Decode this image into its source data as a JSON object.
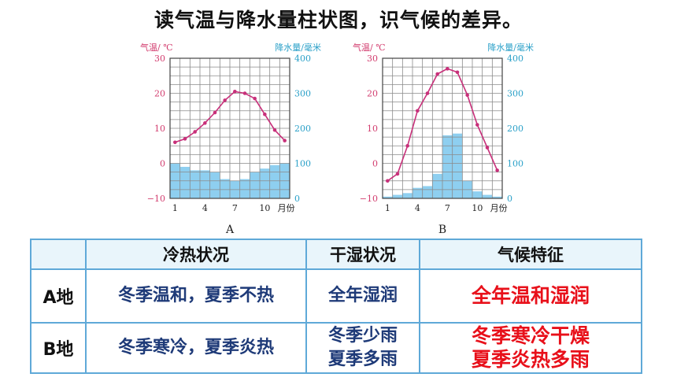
{
  "title": "读气温与降水量柱状图，识气候的差异。",
  "chart_data": [
    {
      "type": "bar+line",
      "caption": "A",
      "left_axis_label": "气温/ ℃",
      "right_axis_label": "降水量/毫米",
      "x_axis_suffix": "月份",
      "x_tick_labels": [
        "1",
        "4",
        "7",
        "10"
      ],
      "left_ticks": [
        "30",
        "20",
        "10",
        "0",
        "−10"
      ],
      "right_ticks": [
        "400",
        "300",
        "200",
        "100",
        "0"
      ],
      "temp_range": [
        -10,
        30
      ],
      "precip_range": [
        0,
        400
      ],
      "months": [
        1,
        2,
        3,
        4,
        5,
        6,
        7,
        8,
        9,
        10,
        11,
        12
      ],
      "temperature": [
        6,
        7,
        9,
        11.5,
        14.5,
        18,
        20.5,
        20,
        18.5,
        14,
        9.5,
        6.5
      ],
      "precipitation": [
        100,
        90,
        80,
        80,
        75,
        55,
        50,
        55,
        75,
        85,
        95,
        100
      ],
      "line_color": "#c8307a",
      "bar_color": "#8ecff0"
    },
    {
      "type": "bar+line",
      "caption": "B",
      "left_axis_label": "气温/ ℃",
      "right_axis_label": "降水量/毫米",
      "x_axis_suffix": "月份",
      "x_tick_labels": [
        "1",
        "4",
        "7",
        "10"
      ],
      "left_ticks": [
        "30",
        "20",
        "10",
        "0",
        "−10"
      ],
      "right_ticks": [
        "400",
        "300",
        "200",
        "100",
        "0"
      ],
      "temp_range": [
        -10,
        30
      ],
      "precip_range": [
        0,
        400
      ],
      "months": [
        1,
        2,
        3,
        4,
        5,
        6,
        7,
        8,
        9,
        10,
        11,
        12
      ],
      "temperature": [
        -5,
        -3,
        5,
        15,
        20,
        25.5,
        27,
        26,
        19.5,
        11,
        4.5,
        -2
      ],
      "precipitation": [
        5,
        10,
        15,
        30,
        35,
        70,
        180,
        185,
        50,
        20,
        10,
        5
      ],
      "line_color": "#c8307a",
      "bar_color": "#8ecff0"
    }
  ],
  "table": {
    "headers": [
      "",
      "冷热状况",
      "干湿状况",
      "气候特征"
    ],
    "rows": [
      {
        "label": "A地",
        "thermal": [
          "冬季温和，夏季不热"
        ],
        "moisture": [
          "全年湿润"
        ],
        "feature": [
          "全年温和湿润"
        ]
      },
      {
        "label": "B地",
        "thermal": [
          "冬季寒冷，夏季炎热"
        ],
        "moisture": [
          "冬季少雨",
          "夏季多雨"
        ],
        "feature": [
          "冬季寒冷干燥",
          "夏季炎热多雨"
        ]
      }
    ],
    "border_color": "#5fa9d8",
    "header_bg": "#e9f5fb",
    "text_color_blue": "#1e3a78",
    "text_color_red": "#e8101a"
  }
}
